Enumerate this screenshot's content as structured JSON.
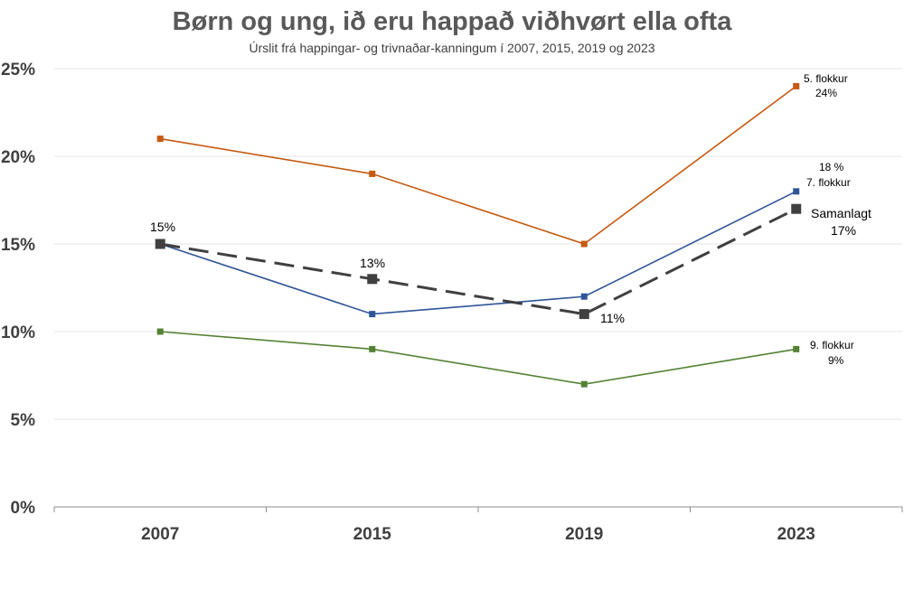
{
  "chart_data": {
    "type": "line",
    "title": "Børn og ung, ið eru happað viðhvørt ella ofta",
    "subtitle": "Úrslit frá happingar- og trivnaðar-kanningum í 2007, 2015, 2019 og 2023",
    "categories": [
      "2007",
      "2015",
      "2019",
      "2023"
    ],
    "ylim": [
      0,
      25
    ],
    "yticks": [
      "0%",
      "5%",
      "10%",
      "15%",
      "20%",
      "25%"
    ],
    "grid": true,
    "series": [
      {
        "key": "g5",
        "values": [
          21,
          19,
          15,
          24
        ],
        "color": "#C55A11",
        "dashed": false
      },
      {
        "key": "g7",
        "values": [
          15,
          11,
          12,
          18
        ],
        "color": "#2F5597",
        "dashed": false
      },
      {
        "key": "g9",
        "values": [
          10,
          9,
          7,
          9
        ],
        "color": "#548235",
        "dashed": false
      },
      {
        "key": "total",
        "values": [
          15,
          13,
          11,
          17
        ],
        "color": "#404040",
        "dashed": true
      }
    ],
    "annotations": {
      "g5_name": "5. flokkur",
      "g5_value": "24%",
      "g7_value": "18 %",
      "g7_name": "7. flokkur",
      "g9_name": "9. flokkur",
      "g9_value": "9%",
      "total_name": "Samanlagt",
      "total_value": "17%",
      "total_2007": "15%",
      "total_2015": "13%",
      "total_2019": "11%"
    }
  }
}
